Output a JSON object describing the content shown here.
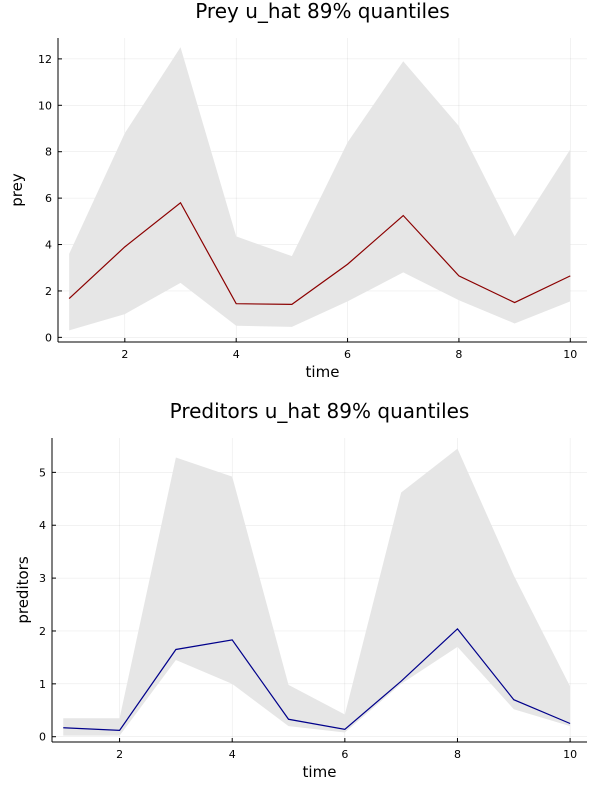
{
  "chart_data": [
    {
      "type": "area",
      "title": "Prey u_hat 89% quantiles",
      "xlabel": "time",
      "ylabel": "prey",
      "xlim": [
        0.8,
        10.3
      ],
      "ylim": [
        -0.2,
        12.9
      ],
      "xticks": [
        2,
        4,
        6,
        8,
        10
      ],
      "yticks": [
        0,
        2,
        4,
        6,
        8,
        10,
        12
      ],
      "grid": true,
      "x": [
        1,
        2,
        3,
        4,
        5,
        6,
        7,
        8,
        9,
        10
      ],
      "series": [
        {
          "median": [
            1.67,
            3.9,
            5.8,
            1.45,
            1.42,
            3.15,
            5.25,
            2.65,
            1.5,
            2.65
          ],
          "lower": [
            0.3,
            1.0,
            2.35,
            0.5,
            0.45,
            1.55,
            2.8,
            1.6,
            0.6,
            1.55
          ],
          "upper": [
            3.6,
            8.8,
            12.5,
            4.35,
            3.5,
            8.4,
            11.9,
            9.1,
            4.35,
            8.1
          ],
          "color": "#8b0000"
        }
      ],
      "band_color": "#e6e6e6"
    },
    {
      "type": "area",
      "title": "Preditors u_hat 89% quantiles",
      "xlabel": "time",
      "ylabel": "preditors",
      "xlim": [
        0.8,
        10.3
      ],
      "ylim": [
        -0.1,
        5.65
      ],
      "xticks": [
        2,
        4,
        6,
        8,
        10
      ],
      "yticks": [
        0,
        1,
        2,
        3,
        4,
        5
      ],
      "grid": true,
      "x": [
        1,
        2,
        3,
        4,
        5,
        6,
        7,
        8,
        9,
        10
      ],
      "series": [
        {
          "median": [
            0.17,
            0.12,
            1.65,
            1.83,
            0.33,
            0.14,
            1.05,
            2.04,
            0.7,
            0.25
          ],
          "lower": [
            0.02,
            0.02,
            1.45,
            1.0,
            0.2,
            0.08,
            1.0,
            1.7,
            0.52,
            0.2
          ],
          "upper": [
            0.35,
            0.35,
            5.28,
            4.92,
            0.98,
            0.42,
            4.62,
            5.45,
            3.05,
            0.95
          ],
          "color": "#00008b"
        }
      ],
      "band_color": "#e6e6e6"
    }
  ]
}
